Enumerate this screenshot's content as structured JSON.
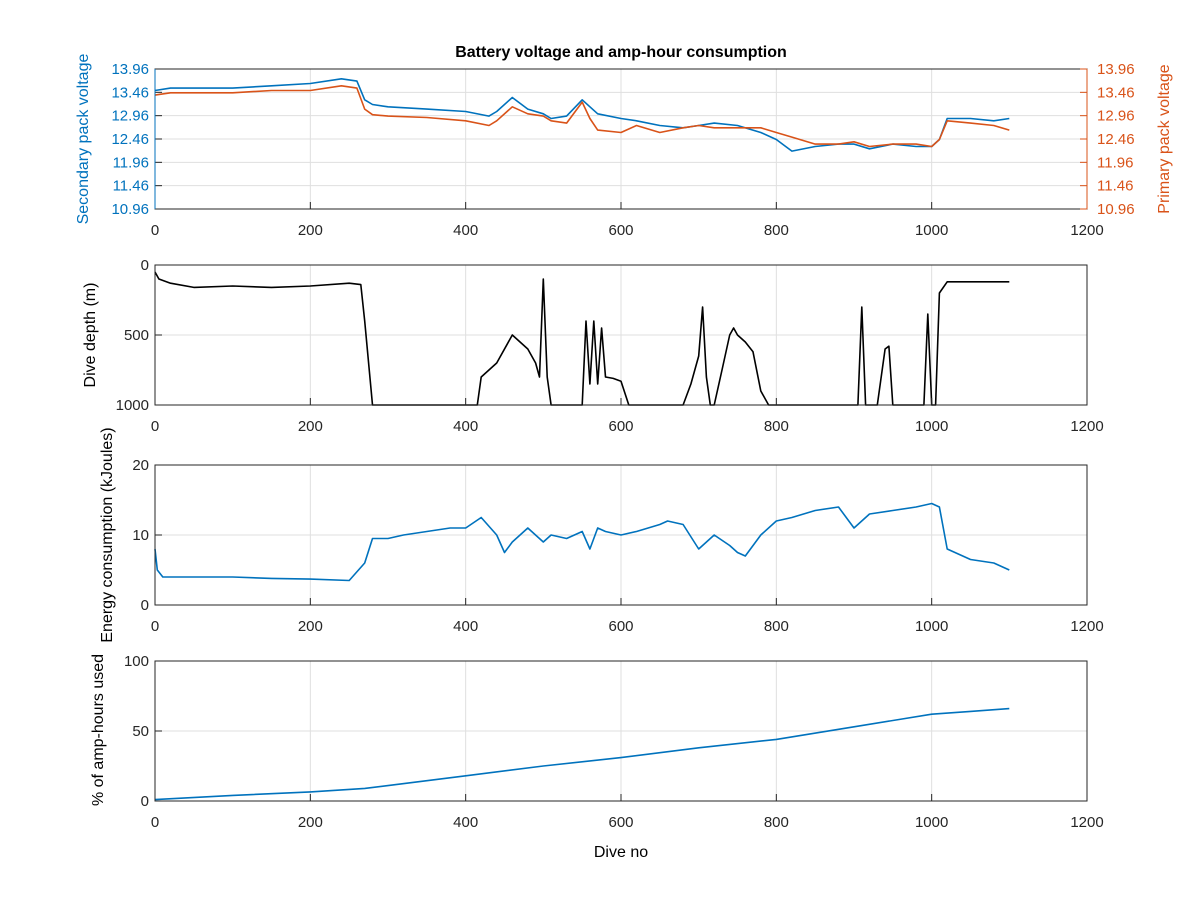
{
  "colors": {
    "blue": "#0072BD",
    "orange": "#D95319",
    "black": "#000000",
    "grid": "#DFDFDF",
    "axis": "#262626"
  },
  "chart_data": [
    {
      "type": "line",
      "title": "Battery voltage and amp-hour consumption",
      "xlabel": "",
      "ylabel": "Secondary pack voltage",
      "ylabel_right": "Primary pack voltage",
      "xlim": [
        0,
        1200
      ],
      "ylim": [
        10.96,
        13.96
      ],
      "ylim_right": [
        10.96,
        13.96
      ],
      "xticks": [
        "0",
        "200",
        "400",
        "600",
        "800",
        "1000",
        "1200"
      ],
      "yticks": [
        "10.96",
        "11.46",
        "11.96",
        "12.46",
        "12.96",
        "13.46",
        "13.96"
      ],
      "yticks_right": [
        "10.96",
        "11.46",
        "11.96",
        "12.46",
        "12.96",
        "13.46",
        "13.96"
      ],
      "grid": true,
      "series": [
        {
          "axis": "left",
          "color": "#0072BD",
          "x": [
            0,
            20,
            50,
            100,
            150,
            200,
            240,
            260,
            270,
            280,
            300,
            350,
            400,
            430,
            440,
            460,
            480,
            500,
            510,
            530,
            550,
            560,
            570,
            600,
            620,
            650,
            680,
            700,
            720,
            750,
            780,
            800,
            820,
            850,
            880,
            900,
            920,
            950,
            980,
            1000,
            1010,
            1020,
            1050,
            1080,
            1100
          ],
          "y": [
            13.5,
            13.55,
            13.55,
            13.55,
            13.6,
            13.65,
            13.75,
            13.7,
            13.3,
            13.2,
            13.15,
            13.1,
            13.05,
            12.95,
            13.05,
            13.35,
            13.1,
            13.0,
            12.9,
            12.95,
            13.3,
            13.15,
            13.0,
            12.9,
            12.85,
            12.75,
            12.7,
            12.75,
            12.8,
            12.75,
            12.6,
            12.45,
            12.2,
            12.3,
            12.35,
            12.35,
            12.25,
            12.35,
            12.3,
            12.3,
            12.45,
            12.9,
            12.9,
            12.85,
            12.9
          ]
        },
        {
          "axis": "right",
          "color": "#D95319",
          "x": [
            0,
            20,
            50,
            100,
            150,
            200,
            240,
            260,
            270,
            280,
            300,
            350,
            400,
            430,
            440,
            460,
            480,
            500,
            510,
            530,
            550,
            560,
            570,
            600,
            620,
            650,
            680,
            700,
            720,
            750,
            780,
            800,
            820,
            850,
            880,
            900,
            920,
            950,
            980,
            1000,
            1010,
            1020,
            1050,
            1080,
            1100
          ],
          "y": [
            13.4,
            13.45,
            13.45,
            13.45,
            13.5,
            13.5,
            13.6,
            13.55,
            13.1,
            12.98,
            12.95,
            12.92,
            12.85,
            12.75,
            12.85,
            13.15,
            13.0,
            12.95,
            12.85,
            12.8,
            13.25,
            12.9,
            12.65,
            12.6,
            12.75,
            12.6,
            12.7,
            12.75,
            12.7,
            12.7,
            12.7,
            12.6,
            12.5,
            12.35,
            12.35,
            12.4,
            12.3,
            12.35,
            12.35,
            12.3,
            12.45,
            12.85,
            12.8,
            12.75,
            12.65
          ]
        }
      ]
    },
    {
      "type": "line",
      "title": "",
      "xlabel": "",
      "ylabel": "Dive depth (m)",
      "xlim": [
        0,
        1200
      ],
      "ylim": [
        0,
        1000
      ],
      "y_reversed": true,
      "xticks": [
        "0",
        "200",
        "400",
        "600",
        "800",
        "1000",
        "1200"
      ],
      "yticks": [
        "0",
        "500",
        "1000"
      ],
      "grid": true,
      "series": [
        {
          "color": "#000000",
          "x": [
            0,
            5,
            20,
            50,
            100,
            150,
            200,
            250,
            265,
            270,
            280,
            300,
            350,
            400,
            415,
            420,
            440,
            460,
            480,
            490,
            495,
            500,
            505,
            510,
            520,
            540,
            550,
            555,
            560,
            565,
            570,
            575,
            580,
            590,
            600,
            610,
            650,
            680,
            690,
            700,
            705,
            710,
            715,
            720,
            730,
            740,
            745,
            750,
            760,
            770,
            780,
            790,
            800,
            850,
            900,
            905,
            910,
            915,
            930,
            940,
            945,
            950,
            990,
            995,
            1000,
            1005,
            1010,
            1020,
            1050,
            1080,
            1100
          ],
          "y": [
            50,
            100,
            130,
            160,
            150,
            160,
            150,
            130,
            140,
            400,
            1000,
            1000,
            1000,
            1000,
            1000,
            800,
            700,
            500,
            600,
            700,
            800,
            100,
            800,
            1000,
            1000,
            1000,
            1000,
            400,
            850,
            400,
            850,
            450,
            800,
            810,
            830,
            1000,
            1000,
            1000,
            850,
            650,
            300,
            800,
            1000,
            1000,
            750,
            500,
            450,
            500,
            550,
            620,
            900,
            1000,
            1000,
            1000,
            1000,
            1000,
            300,
            1000,
            1000,
            600,
            580,
            1000,
            1000,
            350,
            1000,
            1000,
            200,
            120,
            120,
            120,
            120
          ]
        }
      ]
    },
    {
      "type": "line",
      "title": "",
      "xlabel": "",
      "ylabel": "Energy consumption (kJoules)",
      "xlim": [
        0,
        1200
      ],
      "ylim": [
        0,
        20
      ],
      "xticks": [
        "0",
        "200",
        "400",
        "600",
        "800",
        "1000",
        "1200"
      ],
      "yticks": [
        "0",
        "10",
        "20"
      ],
      "grid": true,
      "series": [
        {
          "color": "#0072BD",
          "x": [
            0,
            3,
            10,
            50,
            100,
            150,
            200,
            250,
            270,
            280,
            300,
            320,
            350,
            380,
            400,
            420,
            440,
            450,
            460,
            480,
            500,
            510,
            530,
            550,
            560,
            570,
            580,
            600,
            620,
            650,
            660,
            680,
            700,
            720,
            740,
            750,
            760,
            780,
            800,
            820,
            850,
            880,
            900,
            920,
            950,
            980,
            1000,
            1010,
            1020,
            1050,
            1080,
            1100
          ],
          "y": [
            8,
            5,
            4,
            4,
            4,
            3.8,
            3.7,
            3.5,
            6,
            9.5,
            9.5,
            10,
            10.5,
            11,
            11,
            12.5,
            10,
            7.5,
            9,
            11,
            9,
            10,
            9.5,
            10.5,
            8,
            11,
            10.5,
            10,
            10.5,
            11.5,
            12,
            11.5,
            8,
            10,
            8.5,
            7.5,
            7,
            10,
            12,
            12.5,
            13.5,
            14,
            11,
            13,
            13.5,
            14,
            14.5,
            14,
            8,
            6.5,
            6,
            5
          ]
        }
      ]
    },
    {
      "type": "line",
      "title": "",
      "xlabel": "Dive no",
      "ylabel": "% of amp-hours used",
      "xlim": [
        0,
        1200
      ],
      "ylim": [
        0,
        100
      ],
      "xticks": [
        "0",
        "200",
        "400",
        "600",
        "800",
        "1000",
        "1200"
      ],
      "yticks": [
        "0",
        "50",
        "100"
      ],
      "grid": true,
      "series": [
        {
          "color": "#0072BD",
          "x": [
            0,
            100,
            200,
            270,
            300,
            400,
            500,
            600,
            700,
            800,
            900,
            1000,
            1050,
            1100
          ],
          "y": [
            1,
            4,
            6.5,
            9,
            11,
            18,
            25,
            31,
            38,
            44,
            53,
            62,
            64,
            66
          ]
        }
      ]
    }
  ]
}
